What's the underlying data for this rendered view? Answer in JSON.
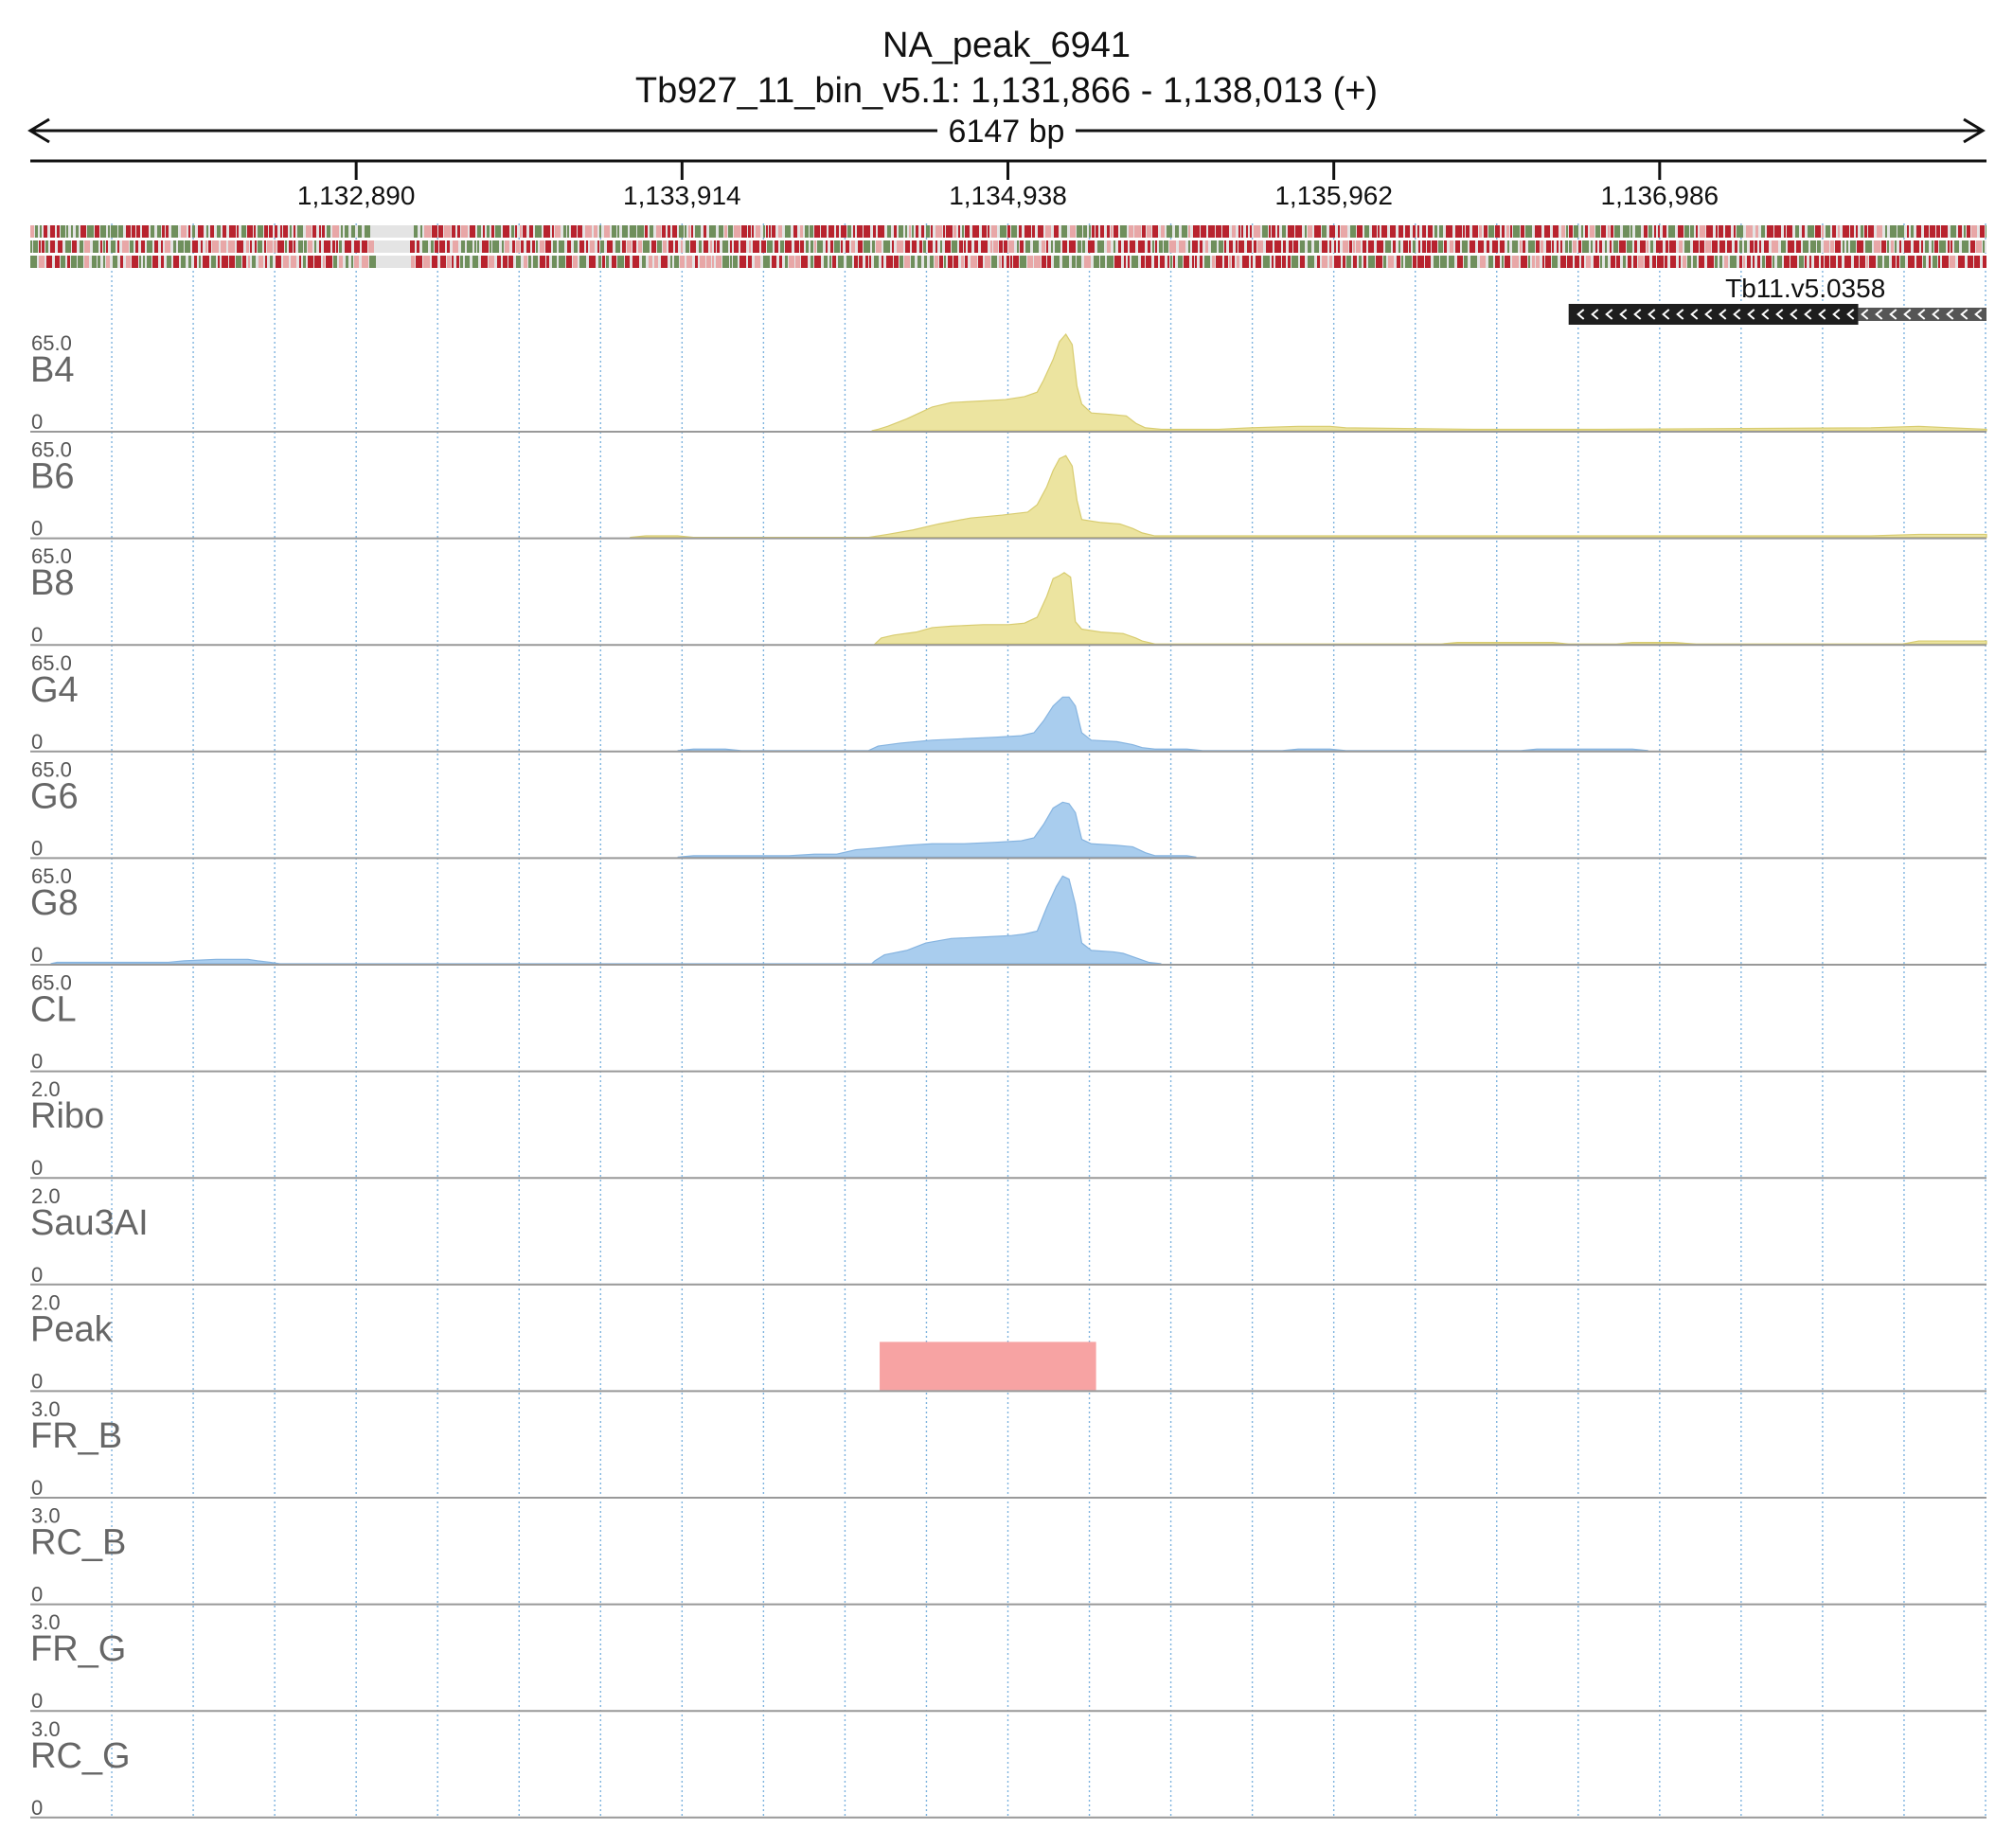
{
  "header": {
    "title": "NA_peak_6941",
    "locus": "Tb927_11_bin_v5.1: 1,131,866 - 1,138,013 (+)",
    "span": "6147 bp"
  },
  "colors": {
    "signal_B": "#ece4a0",
    "signal_B_stroke": "#d8cc70",
    "signal_G": "#a9cdee",
    "signal_G_stroke": "#86b4e0",
    "peak": "#f7a3a3",
    "gene": "#1e1e1e",
    "gridline": "#7eb3de",
    "separator": "#999999",
    "seq_red": "#b8232e",
    "seq_green": "#6f8f5c",
    "seq_pink": "#e8a7a7"
  },
  "chart_data": {
    "type": "area",
    "x_range": [
      1131866,
      1138013
    ],
    "x_ticks": [
      1132890,
      1133914,
      1134938,
      1135962,
      1136986
    ],
    "x_tick_labels": [
      "1,132,890",
      "1,133,914",
      "1,134,938",
      "1,135,962",
      "1,136,986"
    ],
    "gene": {
      "name": "Tb11.v5.0358",
      "start": 1136700,
      "end": 1138013,
      "thick_end": 1137610,
      "strand": "-"
    },
    "tracks": [
      {
        "name": "B4",
        "max": 65.0,
        "max_label": "65.0",
        "min_label": "0",
        "group": "B",
        "points": [
          [
            1134510,
            0
          ],
          [
            1134530,
            1
          ],
          [
            1134560,
            3
          ],
          [
            1134620,
            8
          ],
          [
            1134660,
            12
          ],
          [
            1134700,
            16
          ],
          [
            1134760,
            19
          ],
          [
            1134850,
            20
          ],
          [
            1134930,
            21
          ],
          [
            1134990,
            23
          ],
          [
            1135030,
            26
          ],
          [
            1135050,
            34
          ],
          [
            1135080,
            48
          ],
          [
            1135100,
            60
          ],
          [
            1135120,
            65
          ],
          [
            1135140,
            58
          ],
          [
            1135155,
            30
          ],
          [
            1135170,
            18
          ],
          [
            1135200,
            12
          ],
          [
            1135260,
            11
          ],
          [
            1135310,
            10
          ],
          [
            1135340,
            5
          ],
          [
            1135370,
            2
          ],
          [
            1135420,
            1
          ],
          [
            1135600,
            1
          ],
          [
            1135700,
            2
          ],
          [
            1135850,
            3
          ],
          [
            1135950,
            3
          ],
          [
            1136000,
            2
          ],
          [
            1136400,
            1
          ],
          [
            1136800,
            1
          ],
          [
            1137650,
            2
          ],
          [
            1137800,
            3
          ],
          [
            1137900,
            2
          ],
          [
            1138013,
            1
          ]
        ]
      },
      {
        "name": "B6",
        "max": 65.0,
        "max_label": "65.0",
        "min_label": "0",
        "group": "B",
        "points": [
          [
            1133750,
            0
          ],
          [
            1133800,
            1
          ],
          [
            1133900,
            1
          ],
          [
            1133950,
            0
          ],
          [
            1134500,
            0
          ],
          [
            1134560,
            2
          ],
          [
            1134640,
            5
          ],
          [
            1134720,
            9
          ],
          [
            1134820,
            13
          ],
          [
            1134920,
            15
          ],
          [
            1135000,
            17
          ],
          [
            1135030,
            22
          ],
          [
            1135060,
            34
          ],
          [
            1135080,
            45
          ],
          [
            1135100,
            53
          ],
          [
            1135120,
            55
          ],
          [
            1135140,
            48
          ],
          [
            1135155,
            25
          ],
          [
            1135170,
            12
          ],
          [
            1135230,
            10
          ],
          [
            1135290,
            9
          ],
          [
            1135330,
            6
          ],
          [
            1135360,
            3
          ],
          [
            1135400,
            1
          ],
          [
            1135450,
            1
          ],
          [
            1135600,
            1
          ],
          [
            1135900,
            1
          ],
          [
            1136000,
            1
          ],
          [
            1137650,
            1
          ],
          [
            1137800,
            2
          ],
          [
            1137900,
            2
          ],
          [
            1138013,
            2
          ]
        ]
      },
      {
        "name": "B8",
        "max": 65.0,
        "max_label": "65.0",
        "min_label": "0",
        "group": "B",
        "points": [
          [
            1134520,
            0
          ],
          [
            1134540,
            4
          ],
          [
            1134580,
            6
          ],
          [
            1134650,
            8
          ],
          [
            1134700,
            11
          ],
          [
            1134760,
            12
          ],
          [
            1134860,
            13
          ],
          [
            1134940,
            13
          ],
          [
            1134990,
            14
          ],
          [
            1135030,
            18
          ],
          [
            1135060,
            32
          ],
          [
            1135080,
            44
          ],
          [
            1135100,
            46
          ],
          [
            1135115,
            48
          ],
          [
            1135135,
            45
          ],
          [
            1135150,
            15
          ],
          [
            1135170,
            10
          ],
          [
            1135230,
            8
          ],
          [
            1135300,
            7
          ],
          [
            1135340,
            4
          ],
          [
            1135360,
            2
          ],
          [
            1135400,
            0
          ],
          [
            1136300,
            0
          ],
          [
            1136350,
            1
          ],
          [
            1136650,
            1
          ],
          [
            1136700,
            0
          ],
          [
            1136850,
            0
          ],
          [
            1136900,
            1
          ],
          [
            1137030,
            1
          ],
          [
            1137100,
            0
          ],
          [
            1137750,
            0
          ],
          [
            1137800,
            2
          ],
          [
            1137900,
            2
          ],
          [
            1138013,
            2
          ]
        ]
      },
      {
        "name": "G4",
        "max": 65.0,
        "max_label": "65.0",
        "min_label": "0",
        "group": "G",
        "points": [
          [
            1133900,
            0
          ],
          [
            1133950,
            1
          ],
          [
            1134050,
            1
          ],
          [
            1134100,
            0
          ],
          [
            1134500,
            0
          ],
          [
            1134530,
            3
          ],
          [
            1134600,
            5
          ],
          [
            1134700,
            7
          ],
          [
            1134800,
            8
          ],
          [
            1134900,
            9
          ],
          [
            1134980,
            10
          ],
          [
            1135020,
            12
          ],
          [
            1135050,
            20
          ],
          [
            1135080,
            30
          ],
          [
            1135110,
            36
          ],
          [
            1135130,
            36
          ],
          [
            1135150,
            30
          ],
          [
            1135170,
            12
          ],
          [
            1135200,
            7
          ],
          [
            1135280,
            6
          ],
          [
            1135330,
            4
          ],
          [
            1135360,
            2
          ],
          [
            1135400,
            1
          ],
          [
            1135500,
            1
          ],
          [
            1135550,
            0
          ],
          [
            1135800,
            0
          ],
          [
            1135850,
            1
          ],
          [
            1135950,
            1
          ],
          [
            1136000,
            0
          ],
          [
            1136550,
            0
          ],
          [
            1136600,
            1
          ],
          [
            1136900,
            1
          ],
          [
            1136950,
            0
          ]
        ]
      },
      {
        "name": "G6",
        "max": 65.0,
        "max_label": "65.0",
        "min_label": "0",
        "group": "G",
        "points": [
          [
            1133900,
            0
          ],
          [
            1133950,
            1
          ],
          [
            1134150,
            1
          ],
          [
            1134250,
            1
          ],
          [
            1134330,
            2
          ],
          [
            1134400,
            2
          ],
          [
            1134460,
            5
          ],
          [
            1134520,
            6
          ],
          [
            1134620,
            8
          ],
          [
            1134700,
            9
          ],
          [
            1134800,
            9
          ],
          [
            1134900,
            10
          ],
          [
            1134980,
            11
          ],
          [
            1135020,
            13
          ],
          [
            1135050,
            22
          ],
          [
            1135080,
            33
          ],
          [
            1135110,
            37
          ],
          [
            1135130,
            36
          ],
          [
            1135150,
            30
          ],
          [
            1135170,
            12
          ],
          [
            1135200,
            9
          ],
          [
            1135280,
            8
          ],
          [
            1135330,
            7
          ],
          [
            1135370,
            3
          ],
          [
            1135400,
            1
          ],
          [
            1135500,
            1
          ],
          [
            1135530,
            0
          ]
        ]
      },
      {
        "name": "G8",
        "max": 65.0,
        "max_label": "65.0",
        "min_label": "0",
        "group": "G",
        "points": [
          [
            1131930,
            0
          ],
          [
            1131950,
            1
          ],
          [
            1132300,
            1
          ],
          [
            1132350,
            2
          ],
          [
            1132450,
            3
          ],
          [
            1132550,
            3
          ],
          [
            1132580,
            2
          ],
          [
            1132620,
            1
          ],
          [
            1132650,
            0
          ],
          [
            1134510,
            0
          ],
          [
            1134520,
            2
          ],
          [
            1134550,
            6
          ],
          [
            1134620,
            9
          ],
          [
            1134680,
            14
          ],
          [
            1134760,
            17
          ],
          [
            1134860,
            18
          ],
          [
            1134950,
            19
          ],
          [
            1134990,
            20
          ],
          [
            1135030,
            22
          ],
          [
            1135060,
            38
          ],
          [
            1135090,
            52
          ],
          [
            1135110,
            59
          ],
          [
            1135130,
            57
          ],
          [
            1135150,
            40
          ],
          [
            1135170,
            14
          ],
          [
            1135200,
            9
          ],
          [
            1135270,
            8
          ],
          [
            1135300,
            7
          ],
          [
            1135340,
            4
          ],
          [
            1135380,
            1
          ],
          [
            1135420,
            0
          ]
        ]
      },
      {
        "name": "CL",
        "max": 65.0,
        "max_label": "65.0",
        "min_label": "0",
        "group": "none",
        "points": []
      },
      {
        "name": "Ribo",
        "max": 2.0,
        "max_label": "2.0",
        "min_label": "0",
        "group": "none",
        "points": []
      },
      {
        "name": "Sau3AI",
        "max": 2.0,
        "max_label": "2.0",
        "min_label": "0",
        "group": "none",
        "points": []
      },
      {
        "name": "Peak",
        "max": 2.0,
        "max_label": "2.0",
        "min_label": "0",
        "group": "peak",
        "interval": {
          "start": 1134535,
          "end": 1135215,
          "value": 1.0
        }
      },
      {
        "name": "FR_B",
        "max": 3.0,
        "max_label": "3.0",
        "min_label": "0",
        "group": "none",
        "points": []
      },
      {
        "name": "RC_B",
        "max": 3.0,
        "max_label": "3.0",
        "min_label": "0",
        "group": "none",
        "points": []
      },
      {
        "name": "FR_G",
        "max": 3.0,
        "max_label": "3.0",
        "min_label": "0",
        "group": "none",
        "points": []
      },
      {
        "name": "RC_G",
        "max": 3.0,
        "max_label": "3.0",
        "min_label": "0",
        "group": "none",
        "points": []
      }
    ]
  }
}
